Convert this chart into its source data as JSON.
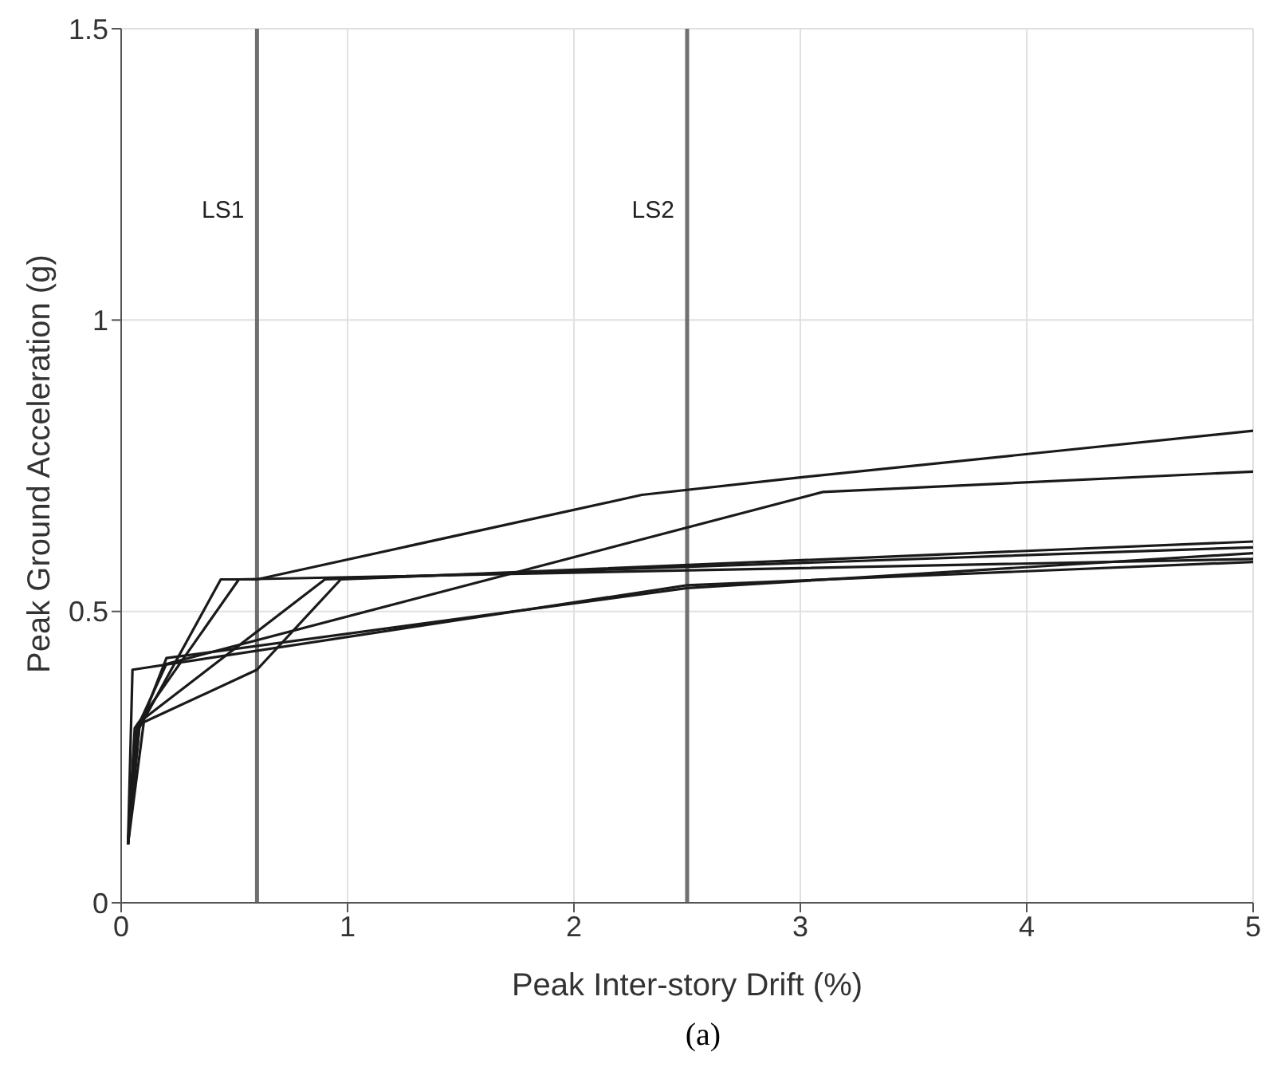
{
  "chart_data": {
    "type": "line",
    "xlabel": "Peak Inter-story Drift (%)",
    "ylabel": "Peak Ground Acceleration (g)",
    "xlim": [
      0,
      5
    ],
    "xticks": [
      0,
      1,
      2,
      3,
      4,
      5
    ],
    "ylim": [
      0,
      1.5
    ],
    "yticks": [
      0,
      0.5,
      1,
      1.5
    ],
    "grid": true,
    "marker": "none",
    "line_style": "solid",
    "series": [
      {
        "color": "#1a1a1a",
        "x": [
          0.03,
          0.08,
          0.44,
          0.6,
          2.3,
          3,
          5
        ],
        "values": [
          0.1,
          0.3,
          0.555,
          0.555,
          0.7,
          0.73,
          0.81
        ]
      },
      {
        "color": "#1a1a1a",
        "x": [
          0.03,
          0.07,
          0.2,
          3.1,
          5
        ],
        "values": [
          0.1,
          0.3,
          0.41,
          0.705,
          0.74
        ]
      },
      {
        "color": "#1a1a1a",
        "x": [
          0.03,
          0.06,
          0.52,
          5
        ],
        "values": [
          0.1,
          0.3,
          0.555,
          0.59
        ]
      },
      {
        "color": "#1a1a1a",
        "x": [
          0.03,
          0.08,
          0.9,
          5
        ],
        "values": [
          0.1,
          0.31,
          0.555,
          0.61
        ]
      },
      {
        "color": "#1a1a1a",
        "x": [
          0.03,
          0.1,
          0.6,
          0.97,
          5
        ],
        "values": [
          0.1,
          0.31,
          0.4,
          0.555,
          0.62
        ]
      },
      {
        "color": "#1a1a1a",
        "x": [
          0.03,
          0.05,
          2.5,
          5
        ],
        "values": [
          0.1,
          0.4,
          0.545,
          0.585
        ]
      },
      {
        "color": "#1a1a1a",
        "x": [
          0.03,
          0.08,
          0.2,
          2.5,
          5
        ],
        "values": [
          0.1,
          0.3,
          0.42,
          0.54,
          0.6
        ]
      }
    ],
    "ref_lines": [
      {
        "axis": "x",
        "value": 0.6,
        "label": "LS1",
        "color": "#707070"
      },
      {
        "axis": "x",
        "value": 2.5,
        "label": "LS2",
        "color": "#707070"
      }
    ],
    "annotations": [
      "(a)"
    ]
  }
}
